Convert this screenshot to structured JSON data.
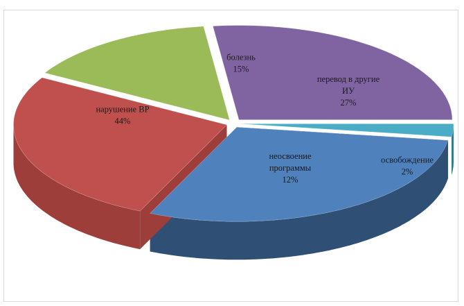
{
  "chart_data": {
    "type": "pie",
    "style": "3d-exploded",
    "title": "",
    "slices": [
      {
        "label_lines": [
          "нарушение ВР",
          "44%"
        ],
        "value": 44,
        "color": "#c0504d",
        "side_color": "#9d3e3b"
      },
      {
        "label_lines": [
          "болезнь",
          "15%"
        ],
        "value": 15,
        "color": "#9bbb59",
        "side_color": "#7a9446"
      },
      {
        "label_lines": [
          "перевод в другие",
          "ИУ",
          "27%"
        ],
        "value": 27,
        "color": "#8064a2",
        "side_color": "#5f4a7a"
      },
      {
        "label_lines": [
          "освобождение",
          "2%"
        ],
        "value": 2,
        "color": "#4bacc6",
        "side_color": "#327a8d"
      },
      {
        "label_lines": [
          "неосвоение",
          "программы",
          "12%"
        ],
        "value": 12,
        "color": "#4f81bd",
        "side_color": "#2f4f75"
      }
    ]
  }
}
